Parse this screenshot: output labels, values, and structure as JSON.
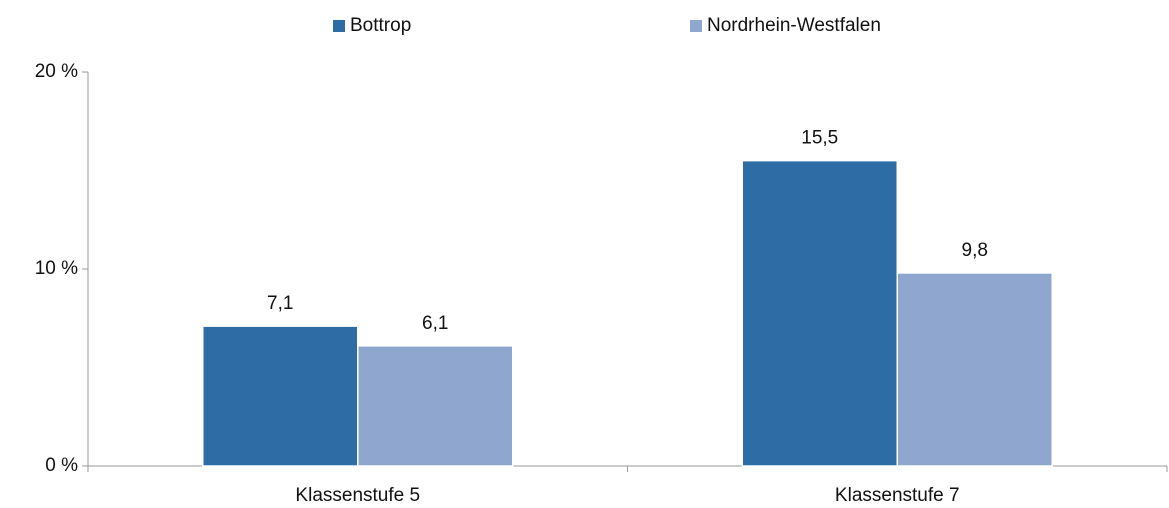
{
  "chart_data": {
    "type": "bar",
    "categories": [
      "Klassenstufe 5",
      "Klassenstufe 7"
    ],
    "series": [
      {
        "name": "Bottrop",
        "color": "#2e6ca5",
        "values": [
          7.1,
          15.5
        ],
        "value_labels": [
          "7,1",
          "15,5"
        ]
      },
      {
        "name": "Nordrhein-Westfalen",
        "color": "#8fa7cf",
        "values": [
          6.1,
          9.8
        ],
        "value_labels": [
          "6,1",
          "9,8"
        ]
      }
    ],
    "ylim": [
      0,
      20
    ],
    "yticks": [
      {
        "value": 0,
        "label": "0 %"
      },
      {
        "value": 10,
        "label": "10 %"
      },
      {
        "value": 20,
        "label": "20 %"
      }
    ],
    "legend": "top"
  }
}
